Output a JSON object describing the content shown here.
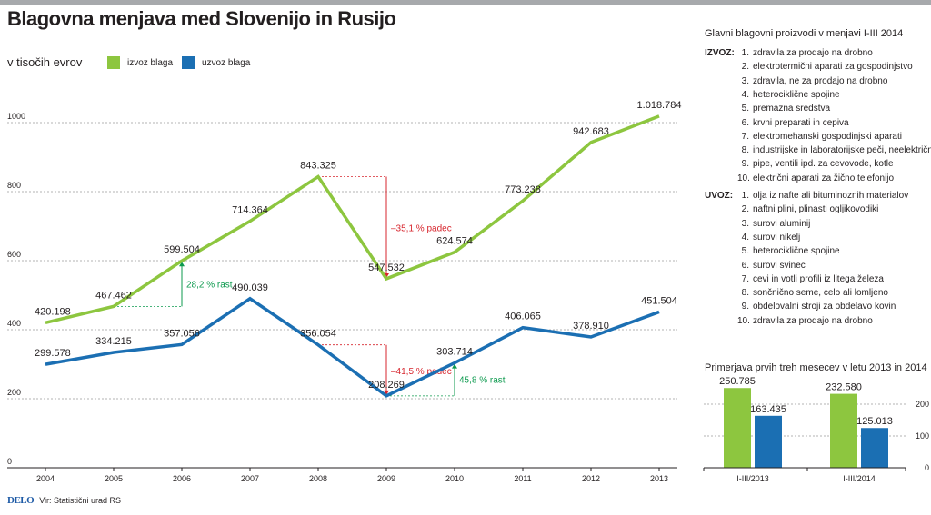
{
  "title": "Blagovna menjava med Slovenijo in Rusijo",
  "unit_label": "v tisočih evrov",
  "colors": {
    "export": "#8dc63f",
    "import": "#1b6fb3",
    "change_down": "#d7262e",
    "change_up": "#0c9a4e"
  },
  "chart_data": [
    {
      "type": "line",
      "x": [
        "2004",
        "2005",
        "2006",
        "2007",
        "2008",
        "2009",
        "2010",
        "2011",
        "2012",
        "2013"
      ],
      "ylim": [
        0,
        1100
      ],
      "yticks": [
        "0",
        "200",
        "400",
        "600",
        "800",
        "1000"
      ],
      "grid": true,
      "legend_position": "top",
      "series": [
        {
          "name": "izvoz blaga",
          "values": [
            420.198,
            467.462,
            599.504,
            714.364,
            843.325,
            547.532,
            624.574,
            773.238,
            942.683,
            1018.784
          ],
          "labels": [
            "420.198",
            "467.462",
            "599.504",
            "714.364",
            "843.325",
            "547.532",
            "624.574",
            "773.238",
            "942.683",
            "1.018.784"
          ]
        },
        {
          "name": "uzvoz blaga",
          "values": [
            299.578,
            334.215,
            357.056,
            490.039,
            356.054,
            208.269,
            303.714,
            406.065,
            378.91,
            451.504
          ],
          "labels": [
            "299.578",
            "334.215",
            "357.056",
            "490.039",
            "356.054",
            "208.269",
            "303.714",
            "406.065",
            "378.910",
            "451.504"
          ]
        }
      ],
      "annotations": [
        {
          "text": "28,2 % rast",
          "series": 0,
          "from": "2005",
          "to": "2006",
          "kind": "up"
        },
        {
          "text": "–35,1 % padec",
          "series": 0,
          "from": "2008",
          "to": "2009",
          "kind": "down"
        },
        {
          "text": "–41,5 % padec",
          "series": 1,
          "from": "2008",
          "to": "2009",
          "kind": "down"
        },
        {
          "text": "45,8 % rast",
          "series": 1,
          "from": "2009",
          "to": "2010",
          "kind": "up"
        }
      ]
    },
    {
      "type": "bar",
      "title": "Primerjava prvih treh mesecev v letu 2013 in 2014",
      "categories": [
        "I-III/2013",
        "I-III/2014"
      ],
      "ylim": [
        0,
        300
      ],
      "yticks": [
        "0",
        "100",
        "200"
      ],
      "series": [
        {
          "name": "izvoz blaga",
          "values": [
            250.785,
            232.58
          ],
          "labels": [
            "250.785",
            "232.580"
          ]
        },
        {
          "name": "uzvoz blaga",
          "values": [
            163.435,
            125.013
          ],
          "labels": [
            "163.435",
            "125.013"
          ]
        }
      ]
    }
  ],
  "products": {
    "title": "Glavni blagovni proizvodi v menjavi I-III 2014",
    "export_label": "IZVOZ:",
    "export_items": [
      "zdravila za prodajo na drobno",
      "elektrotermični aparati za gospodinjstvo",
      "zdravila, ne za prodajo na drobno",
      "heterociklične spojine",
      "premazna sredstva",
      "krvni preparati in cepiva",
      "elektromehanski gospodinjski aparati",
      "industrijske in laboratorijske peči, neelektrične",
      "pipe, ventili ipd. za cevovode, kotle",
      "električni aparati za žično telefonijo"
    ],
    "import_label": "UVOZ:",
    "import_items": [
      "olja iz nafte ali bituminoznih materialov",
      "naftni plini, plinasti ogljikovodiki",
      "surovi aluminij",
      "surovi nikelj",
      "heterociklične spojine",
      "surovi svinec",
      "cevi in votli profili iz litega železa",
      "sončnično seme, celo ali lomljeno",
      "obdelovalni stroji za obdelavo kovin",
      "zdravila za prodajo na drobno"
    ]
  },
  "footer": {
    "logo": "DELO",
    "source": "Vir: Statistični urad RS"
  }
}
